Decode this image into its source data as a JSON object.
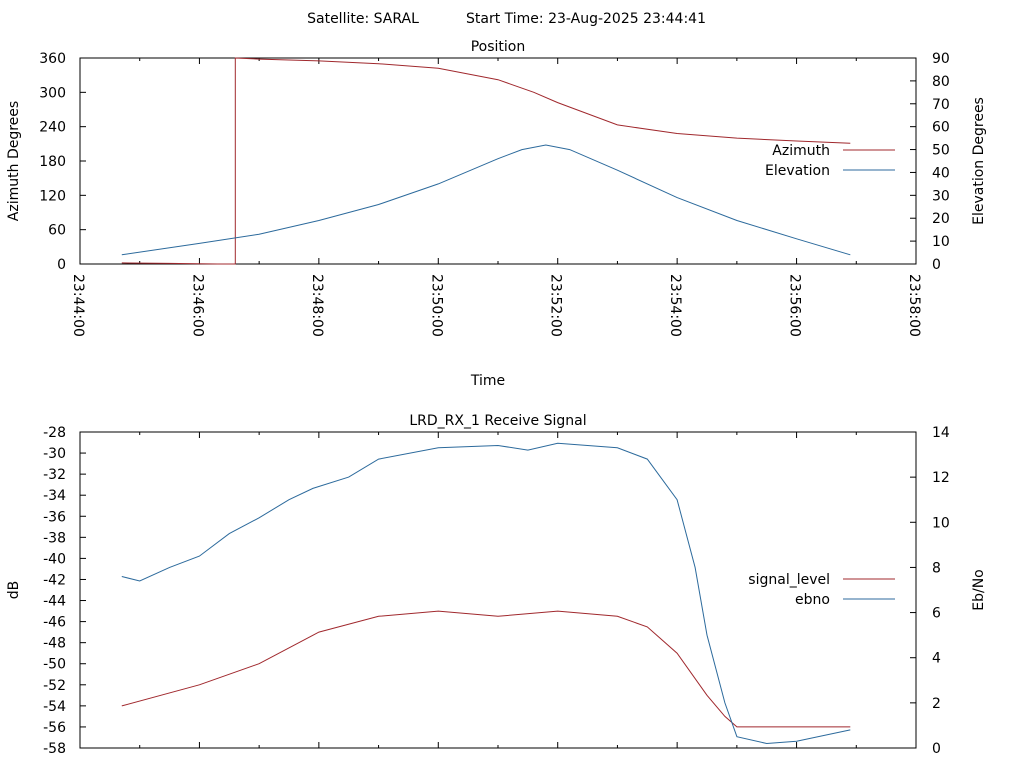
{
  "header": {
    "satellite": "Satellite: SARAL",
    "start_time": "Start Time: 23-Aug-2025 23:44:41"
  },
  "chart_data": [
    {
      "type": "line",
      "title": "Position",
      "xlabel": "Time",
      "ylabel": "Azimuth Degrees",
      "y2label": "Elevation Degrees",
      "x_ticks": [
        "23:44:00",
        "23:46:00",
        "23:48:00",
        "23:50:00",
        "23:52:00",
        "23:54:00",
        "23:56:00",
        "23:58:00"
      ],
      "xlim_minutes": [
        0,
        14
      ],
      "ylim": [
        0,
        360
      ],
      "y_ticks": [
        "0",
        "60",
        "120",
        "180",
        "240",
        "300",
        "360"
      ],
      "y2lim": [
        0,
        90
      ],
      "y2_ticks": [
        "0",
        "10",
        "20",
        "30",
        "40",
        "50",
        "60",
        "70",
        "80",
        "90"
      ],
      "legend_position": "right",
      "grid": false,
      "series": [
        {
          "name": "Azimuth",
          "axis": "left",
          "color": "#a0282d",
          "x_minutes": [
            0.7,
            1.5,
            2.3,
            2.6,
            2.6,
            3.0,
            4.0,
            5.0,
            6.0,
            7.0,
            7.6,
            8.0,
            9.0,
            10.0,
            11.0,
            12.0,
            12.9
          ],
          "values": [
            2,
            1,
            0,
            0,
            360,
            358,
            355,
            350,
            342,
            322,
            300,
            282,
            243,
            228,
            220,
            215,
            211
          ]
        },
        {
          "name": "Elevation",
          "axis": "right",
          "color": "#2c6a9c",
          "x_minutes": [
            0.7,
            2.0,
            3.0,
            4.0,
            5.0,
            6.0,
            7.0,
            7.4,
            7.8,
            8.2,
            9.0,
            10.0,
            11.0,
            12.0,
            12.9
          ],
          "values": [
            4,
            9,
            13,
            19,
            26,
            35,
            46,
            50,
            52,
            50,
            41,
            29,
            19,
            11,
            4
          ]
        }
      ]
    },
    {
      "type": "line",
      "title": "LRD_RX_1 Receive Signal",
      "ylabel": "dB",
      "y2label": "Eb/No",
      "ylim": [
        -58,
        -28
      ],
      "y_ticks": [
        "-58",
        "-56",
        "-54",
        "-52",
        "-50",
        "-48",
        "-46",
        "-44",
        "-42",
        "-40",
        "-38",
        "-36",
        "-34",
        "-32",
        "-30",
        "-28"
      ],
      "y2lim": [
        0,
        14
      ],
      "y2_ticks": [
        "0",
        "2",
        "4",
        "6",
        "8",
        "10",
        "12",
        "14"
      ],
      "xlim_minutes": [
        0,
        14
      ],
      "legend_position": "right",
      "grid": false,
      "series": [
        {
          "name": "signal_level",
          "axis": "left",
          "color": "#a0282d",
          "x_minutes": [
            0.7,
            2.0,
            3.0,
            4.0,
            5.0,
            6.0,
            7.0,
            8.0,
            9.0,
            9.5,
            10.0,
            10.5,
            10.8,
            11.0,
            12.0,
            12.9
          ],
          "values": [
            -54,
            -52,
            -50,
            -47,
            -45.5,
            -45,
            -45.5,
            -45,
            -45.5,
            -46.5,
            -49,
            -53,
            -55,
            -56,
            -56,
            -56
          ]
        },
        {
          "name": "ebno",
          "axis": "right",
          "color": "#2c6a9c",
          "x_minutes": [
            0.7,
            1.0,
            1.5,
            2.0,
            2.5,
            3.0,
            3.5,
            3.9,
            4.5,
            5.0,
            6.0,
            7.0,
            7.5,
            8.0,
            8.5,
            9.0,
            9.5,
            10.0,
            10.3,
            10.5,
            10.8,
            11.0,
            11.5,
            12.0,
            12.9
          ],
          "values": [
            7.6,
            7.4,
            8.0,
            8.5,
            9.5,
            10.2,
            11.0,
            11.5,
            12.0,
            12.8,
            13.3,
            13.4,
            13.2,
            13.5,
            13.4,
            13.3,
            12.8,
            11.0,
            8.0,
            5.0,
            2.0,
            0.5,
            0.2,
            0.3,
            0.8
          ]
        }
      ]
    }
  ]
}
